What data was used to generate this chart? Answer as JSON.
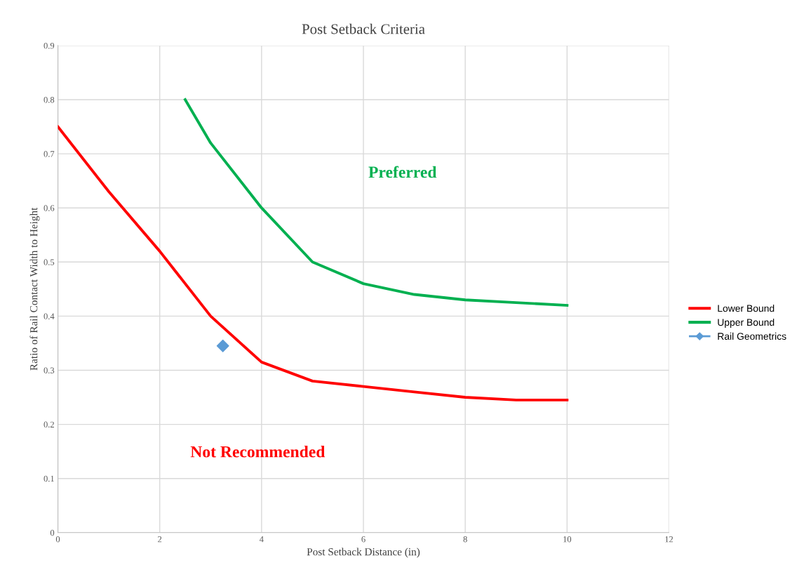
{
  "chart_data": {
    "type": "line",
    "title": "Post Setback Criteria",
    "xlabel": "Post Setback Distance (in)",
    "ylabel": "Ratio of Rail Contact Width to Height",
    "xlim": [
      0,
      12
    ],
    "xticks": [
      0,
      2,
      4,
      6,
      8,
      10,
      12
    ],
    "ylim": [
      0,
      0.9
    ],
    "yticks": [
      0,
      0.1,
      0.2,
      0.3,
      0.4,
      0.5,
      0.6,
      0.7,
      0.8,
      0.9
    ],
    "grid": true,
    "legend": "right",
    "series": [
      {
        "name": "Lower Bound",
        "color": "#ff0000",
        "marker": "none",
        "x": [
          0,
          1,
          2,
          3,
          4,
          5,
          6,
          7,
          8,
          9,
          10
        ],
        "values": [
          0.75,
          0.63,
          0.52,
          0.4,
          0.315,
          0.28,
          0.27,
          0.26,
          0.25,
          0.245,
          0.245
        ]
      },
      {
        "name": "Upper Bound",
        "color": "#00b050",
        "marker": "none",
        "x": [
          2.5,
          3,
          4,
          5,
          6,
          7,
          8,
          9,
          10
        ],
        "values": [
          0.8,
          0.72,
          0.6,
          0.5,
          0.46,
          0.44,
          0.43,
          0.425,
          0.42
        ]
      },
      {
        "name": "Rail Geometrics",
        "type": "scatter",
        "color": "#5b9bd5",
        "marker": "diamond",
        "x": [
          3.24
        ],
        "values": [
          0.345
        ]
      }
    ],
    "annotations": [
      "Preferred",
      "Not Recommended"
    ]
  }
}
